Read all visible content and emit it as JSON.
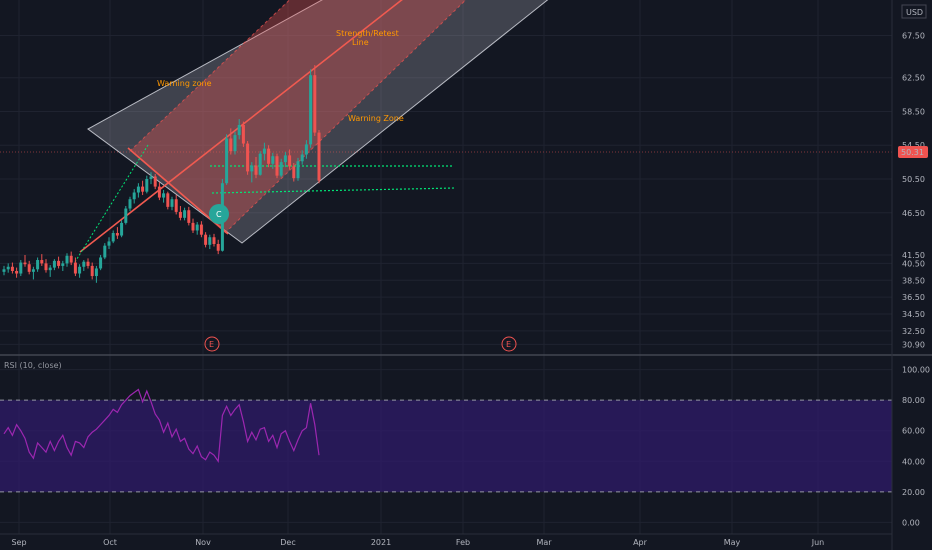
{
  "colors": {
    "background": "#131722",
    "grid": "#1f2330",
    "up_candle": "#26a69a",
    "down_candle": "#ef5350",
    "channel_fill": "#ef5350",
    "warning_zone_fill": "#b2b5be",
    "rsi_line": "#9c27b0",
    "rsi_band": "#311b6e",
    "annotation_text": "#ff9800",
    "support_lines": "#00e676",
    "price_tag": "#ef5350"
  },
  "chart_data": [
    {
      "type": "candlestick",
      "currency": "USD",
      "last_price": "50.31",
      "y_ticks": [
        "67.50",
        "62.50",
        "58.50",
        "54.50",
        "50.50",
        "46.50",
        "41.50",
        "40.50",
        "38.50",
        "36.50",
        "34.50",
        "32.50",
        "30.90"
      ],
      "x_ticks": [
        "Sep",
        "Oct",
        "Nov",
        "Dec",
        "2021",
        "Feb",
        "Mar",
        "Apr",
        "May",
        "Jun"
      ],
      "ylim": [
        30,
        71
      ],
      "candles": [
        [
          39.5,
          40.2,
          39.1,
          39.8
        ],
        [
          39.8,
          40.5,
          39.4,
          40.1
        ],
        [
          40.1,
          40.6,
          39.3,
          39.6
        ],
        [
          39.6,
          40.0,
          38.8,
          39.3
        ],
        [
          39.3,
          40.9,
          39.0,
          40.6
        ],
        [
          40.6,
          41.5,
          40.1,
          40.4
        ],
        [
          40.4,
          40.8,
          39.2,
          39.5
        ],
        [
          39.5,
          40.1,
          38.6,
          39.8
        ],
        [
          39.8,
          41.2,
          39.5,
          40.9
        ],
        [
          40.9,
          41.6,
          40.2,
          40.5
        ],
        [
          40.5,
          41.0,
          39.4,
          39.7
        ],
        [
          39.7,
          40.3,
          38.9,
          40.0
        ],
        [
          40.0,
          41.0,
          39.7,
          40.8
        ],
        [
          40.8,
          41.3,
          39.9,
          40.2
        ],
        [
          40.2,
          40.8,
          39.6,
          40.5
        ],
        [
          40.5,
          41.7,
          40.1,
          41.4
        ],
        [
          41.4,
          41.9,
          40.3,
          40.6
        ],
        [
          40.6,
          41.2,
          39.0,
          39.3
        ],
        [
          39.3,
          40.4,
          38.8,
          40.1
        ],
        [
          40.1,
          40.9,
          39.6,
          40.7
        ],
        [
          40.7,
          41.1,
          39.9,
          40.2
        ],
        [
          40.2,
          40.6,
          38.6,
          39.0
        ],
        [
          39.0,
          40.2,
          38.2,
          39.9
        ],
        [
          39.9,
          41.5,
          39.7,
          41.2
        ],
        [
          41.2,
          42.9,
          41.0,
          42.6
        ],
        [
          42.6,
          43.6,
          42.2,
          43.1
        ],
        [
          43.1,
          44.4,
          42.9,
          44.1
        ],
        [
          44.1,
          44.8,
          43.4,
          43.8
        ],
        [
          43.8,
          45.6,
          43.6,
          45.3
        ],
        [
          45.3,
          47.3,
          45.1,
          47.0
        ],
        [
          47.0,
          48.4,
          46.7,
          48.1
        ],
        [
          48.1,
          49.3,
          47.6,
          48.9
        ],
        [
          48.9,
          50.0,
          48.3,
          49.6
        ],
        [
          49.6,
          50.3,
          48.6,
          49.0
        ],
        [
          49.0,
          50.9,
          48.8,
          50.5
        ],
        [
          50.5,
          51.3,
          49.9,
          50.8
        ],
        [
          50.8,
          51.1,
          49.3,
          49.6
        ],
        [
          49.6,
          50.1,
          48.0,
          48.3
        ],
        [
          48.3,
          49.2,
          47.7,
          48.8
        ],
        [
          48.8,
          49.0,
          46.9,
          47.2
        ],
        [
          47.2,
          48.4,
          46.8,
          48.1
        ],
        [
          48.1,
          48.6,
          46.3,
          46.6
        ],
        [
          46.6,
          47.3,
          45.6,
          45.9
        ],
        [
          45.9,
          47.1,
          45.6,
          46.8
        ],
        [
          46.8,
          47.2,
          45.0,
          45.3
        ],
        [
          45.3,
          45.8,
          44.1,
          44.4
        ],
        [
          44.4,
          45.4,
          43.9,
          45.1
        ],
        [
          45.1,
          45.5,
          43.6,
          43.9
        ],
        [
          43.9,
          44.2,
          42.4,
          42.7
        ],
        [
          42.7,
          43.9,
          42.2,
          43.6
        ],
        [
          43.6,
          44.0,
          42.5,
          42.8
        ],
        [
          42.8,
          43.3,
          41.6,
          42.0
        ],
        [
          42.0,
          50.5,
          41.9,
          50.0
        ],
        [
          50.0,
          55.8,
          49.8,
          55.3
        ],
        [
          55.3,
          56.5,
          53.4,
          53.8
        ],
        [
          53.8,
          56.1,
          53.4,
          55.7
        ],
        [
          55.7,
          57.6,
          55.2,
          56.9
        ],
        [
          56.9,
          57.3,
          54.3,
          54.7
        ],
        [
          54.7,
          55.0,
          51.0,
          51.4
        ],
        [
          51.4,
          52.5,
          50.1,
          52.1
        ],
        [
          52.1,
          53.1,
          50.6,
          51.0
        ],
        [
          51.0,
          53.8,
          50.9,
          53.5
        ],
        [
          53.5,
          54.8,
          52.7,
          54.1
        ],
        [
          54.1,
          54.5,
          51.9,
          52.3
        ],
        [
          52.3,
          53.6,
          51.7,
          53.2
        ],
        [
          53.2,
          53.5,
          50.6,
          50.9
        ],
        [
          50.9,
          52.9,
          50.7,
          52.5
        ],
        [
          52.5,
          53.7,
          51.9,
          53.3
        ],
        [
          53.3,
          54.0,
          51.6,
          52.0
        ],
        [
          52.0,
          52.4,
          50.2,
          50.6
        ],
        [
          50.6,
          53.0,
          50.3,
          52.6
        ],
        [
          52.6,
          53.9,
          52.2,
          53.4
        ],
        [
          53.4,
          55.1,
          52.9,
          54.6
        ],
        [
          54.6,
          63.5,
          54.2,
          62.8
        ],
        [
          62.8,
          64.0,
          55.6,
          56.0
        ],
        [
          56.0,
          56.3,
          50.0,
          50.31
        ]
      ]
    },
    {
      "type": "line",
      "title": "RSI (10, close)",
      "y_ticks": [
        "100.00",
        "80.00",
        "60.00",
        "40.00",
        "20.00",
        "0.00"
      ],
      "ylim": [
        -5,
        105
      ],
      "band": [
        20,
        80
      ],
      "values": [
        58,
        62,
        57,
        64,
        60,
        55,
        46,
        42,
        52,
        49,
        46,
        53,
        47,
        53,
        57,
        49,
        44,
        53,
        52,
        49,
        56,
        59,
        61,
        64,
        67,
        70,
        74,
        72,
        77,
        80,
        83,
        85,
        87,
        79,
        86,
        79,
        71,
        67,
        59,
        65,
        56,
        61,
        53,
        55,
        48,
        45,
        50,
        43,
        41,
        46,
        44,
        40,
        70,
        76,
        70,
        74,
        77,
        66,
        53,
        59,
        54,
        61,
        62,
        53,
        57,
        49,
        58,
        60,
        53,
        47,
        54,
        60,
        62,
        78,
        64,
        44
      ]
    }
  ],
  "annotations": {
    "warning_zone_upper": "Warning zone",
    "warning_zone_lower": "Warning Zone",
    "strength_retest_line1": "Strength/Retest",
    "strength_retest_line2": "Line",
    "earnings_marker": "E",
    "cursor_marker": "C"
  }
}
